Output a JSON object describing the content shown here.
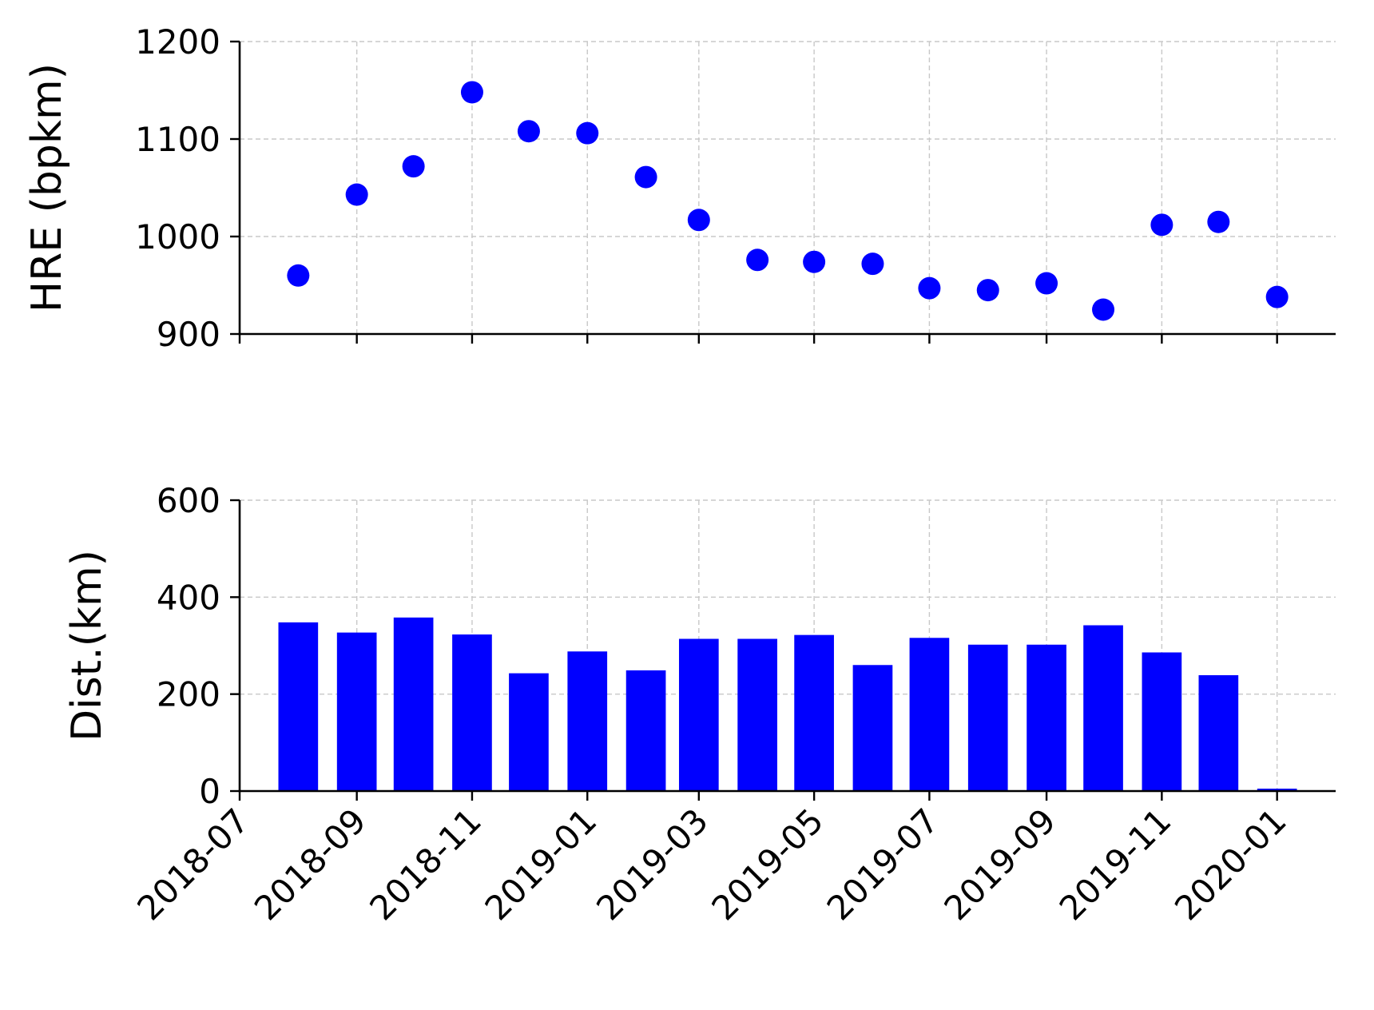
{
  "chart_data": [
    {
      "type": "scatter",
      "ylabel": "HRE (bpkm)",
      "ylim": [
        900,
        1200
      ],
      "yticks": [
        900,
        1000,
        1100,
        1200
      ],
      "grid": true,
      "color": "#0000ff",
      "points": [
        {
          "x": "2018-08-01",
          "y": 960
        },
        {
          "x": "2018-09-01",
          "y": 1043
        },
        {
          "x": "2018-10-01",
          "y": 1072
        },
        {
          "x": "2018-11-01",
          "y": 1148
        },
        {
          "x": "2018-12-01",
          "y": 1108
        },
        {
          "x": "2019-01-01",
          "y": 1106
        },
        {
          "x": "2019-02-01",
          "y": 1061
        },
        {
          "x": "2019-03-01",
          "y": 1017
        },
        {
          "x": "2019-04-01",
          "y": 976
        },
        {
          "x": "2019-05-01",
          "y": 974
        },
        {
          "x": "2019-06-01",
          "y": 972
        },
        {
          "x": "2019-07-01",
          "y": 947
        },
        {
          "x": "2019-08-01",
          "y": 945
        },
        {
          "x": "2019-09-01",
          "y": 952
        },
        {
          "x": "2019-10-01",
          "y": 925
        },
        {
          "x": "2019-11-01",
          "y": 1012
        },
        {
          "x": "2019-12-01",
          "y": 1015
        },
        {
          "x": "2020-01-01",
          "y": 938
        }
      ]
    },
    {
      "type": "bar",
      "ylabel": "Dist.(km)",
      "ylim": [
        0,
        600
      ],
      "yticks": [
        0,
        200,
        400,
        600
      ],
      "grid": true,
      "color": "#0000ff",
      "bars": [
        {
          "x": "2018-08-01",
          "y": 348
        },
        {
          "x": "2018-09-01",
          "y": 327
        },
        {
          "x": "2018-10-01",
          "y": 358
        },
        {
          "x": "2018-11-01",
          "y": 323
        },
        {
          "x": "2018-12-01",
          "y": 243
        },
        {
          "x": "2019-01-01",
          "y": 288
        },
        {
          "x": "2019-02-01",
          "y": 249
        },
        {
          "x": "2019-03-01",
          "y": 314
        },
        {
          "x": "2019-04-01",
          "y": 314
        },
        {
          "x": "2019-05-01",
          "y": 322
        },
        {
          "x": "2019-06-01",
          "y": 260
        },
        {
          "x": "2019-07-01",
          "y": 316
        },
        {
          "x": "2019-08-01",
          "y": 302
        },
        {
          "x": "2019-09-01",
          "y": 302
        },
        {
          "x": "2019-10-01",
          "y": 342
        },
        {
          "x": "2019-11-01",
          "y": 286
        },
        {
          "x": "2019-12-01",
          "y": 239
        },
        {
          "x": "2020-01-01",
          "y": 5
        }
      ]
    }
  ],
  "x_axis": {
    "ticks": [
      "2018-07",
      "2018-09",
      "2018-11",
      "2019-01",
      "2019-03",
      "2019-05",
      "2019-07",
      "2019-09",
      "2019-11",
      "2020-01"
    ],
    "xlim": [
      "2018-07-01",
      "2020-02-01"
    ]
  }
}
